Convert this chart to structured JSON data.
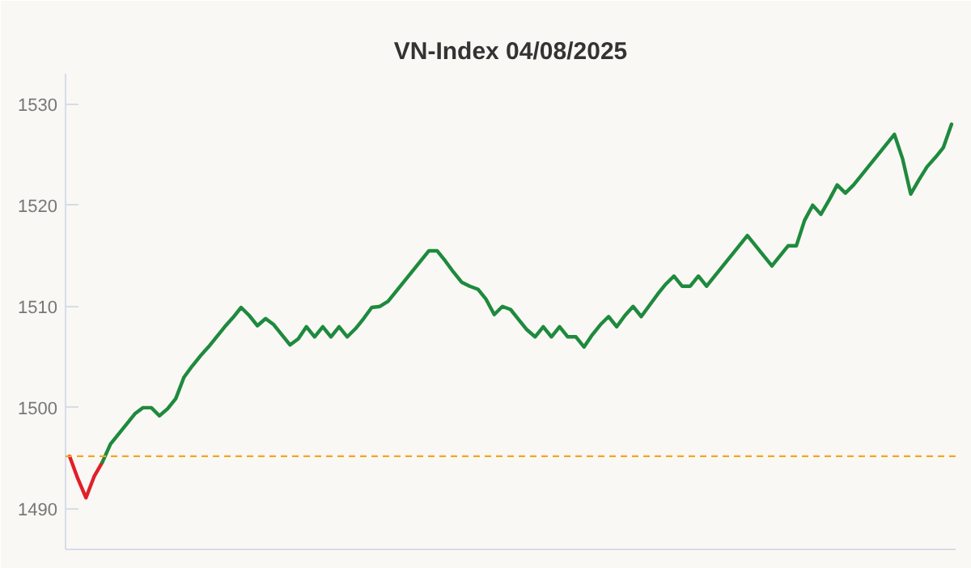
{
  "chart_data": {
    "type": "line",
    "title": "VN-Index 04/08/2025",
    "categories": [
      null,
      null,
      null,
      null,
      null,
      null,
      null,
      null,
      null,
      null,
      null,
      null,
      null,
      null,
      null,
      null,
      null,
      null,
      null,
      null,
      null,
      null,
      null,
      null,
      null,
      null,
      null,
      null,
      null,
      null,
      null,
      null,
      null,
      null,
      null,
      null,
      null,
      null,
      null,
      null,
      null,
      null,
      null,
      null,
      null,
      null,
      null,
      null,
      null,
      null,
      null,
      null,
      null,
      null,
      null,
      null,
      null,
      null,
      null,
      null,
      null,
      null,
      null,
      null,
      null,
      null,
      null,
      null,
      null,
      null,
      null,
      null,
      null,
      null,
      null,
      null,
      null,
      null,
      null,
      null,
      null,
      null,
      null,
      null,
      null,
      null,
      null,
      null,
      null,
      null,
      null,
      null,
      null,
      null,
      null,
      null,
      null,
      null,
      null,
      null,
      null,
      null,
      null,
      null,
      null,
      null,
      null,
      null,
      null
    ],
    "ylim": [
      1486,
      1533
    ],
    "yticks": [
      1490,
      1500,
      1510,
      1520,
      1530
    ],
    "tick_labels": "y",
    "line_style": "solid",
    "ref_lines": [
      {
        "axis": "y",
        "value": 1495.2,
        "label": null,
        "color": "#f5a623",
        "line_style": "dashed"
      }
    ],
    "series": [
      {
        "color": "#e0202a",
        "values": [
          1495.2,
          1493.0,
          1491.1,
          1493.2,
          1494.6,
          null,
          null,
          null,
          null,
          null,
          null,
          null,
          null,
          null,
          null,
          null,
          null,
          null,
          null,
          null,
          null,
          null,
          null,
          null,
          null,
          null,
          null,
          null,
          null,
          null,
          null,
          null,
          null,
          null,
          null,
          null,
          null,
          null,
          null,
          null,
          null,
          null,
          null,
          null,
          null,
          null,
          null,
          null,
          null,
          null,
          null,
          null,
          null,
          null,
          null,
          null,
          null,
          null,
          null,
          null,
          null,
          null,
          null,
          null,
          null,
          null,
          null,
          null,
          null,
          null,
          null,
          null,
          null,
          null,
          null,
          null,
          null,
          null,
          null,
          null,
          null,
          null,
          null,
          null,
          null,
          null,
          null,
          null,
          null,
          null,
          null,
          null,
          null,
          null,
          null,
          null,
          null,
          null,
          null,
          null,
          null,
          null,
          null,
          null,
          null,
          null,
          null,
          null,
          null
        ]
      },
      {
        "color": "#1e8a3e",
        "values": [
          null,
          null,
          null,
          null,
          1494.6,
          1496.4,
          1497.4,
          1498.4,
          1499.4,
          1500.0,
          1500.0,
          1499.2,
          1499.9,
          1500.9,
          1503.0,
          1504.1,
          1505.1,
          1506.0,
          1507.0,
          1508.0,
          1508.9,
          1509.9,
          1509.1,
          1508.1,
          1508.8,
          1508.2,
          1507.2,
          1506.2,
          1506.8,
          1508.0,
          1507.0,
          1508.0,
          1507.0,
          1508.0,
          1507.0,
          1507.8,
          1508.8,
          1509.9,
          1510.0,
          1510.5,
          1511.5,
          1512.5,
          1513.5,
          1514.5,
          1515.5,
          1515.5,
          1514.5,
          1513.4,
          1512.4,
          1512.0,
          1511.7,
          1510.7,
          1509.2,
          1510.0,
          1509.7,
          1508.7,
          1507.7,
          1507.0,
          1508.0,
          1507.0,
          1508.0,
          1507.0,
          1507.0,
          1506.0,
          1507.2,
          1508.2,
          1509.0,
          1508.0,
          1509.1,
          1510.0,
          1509.0,
          1510.1,
          1511.2,
          1512.2,
          1513.0,
          1512.0,
          1512.0,
          1513.0,
          1512.0,
          1513.0,
          1514.0,
          1515.0,
          1516.0,
          1517.0,
          1516.0,
          1515.0,
          1514.0,
          1515.0,
          1516.0,
          1516.0,
          1518.5,
          1520.0,
          1519.1,
          1520.5,
          1522.0,
          1521.2,
          1522.0,
          1523.0,
          1524.0,
          1525.0,
          1526.0,
          1527.0,
          1524.6,
          1521.1,
          1522.5,
          1523.8,
          1524.7,
          1525.7,
          1528.0
        ]
      }
    ]
  }
}
